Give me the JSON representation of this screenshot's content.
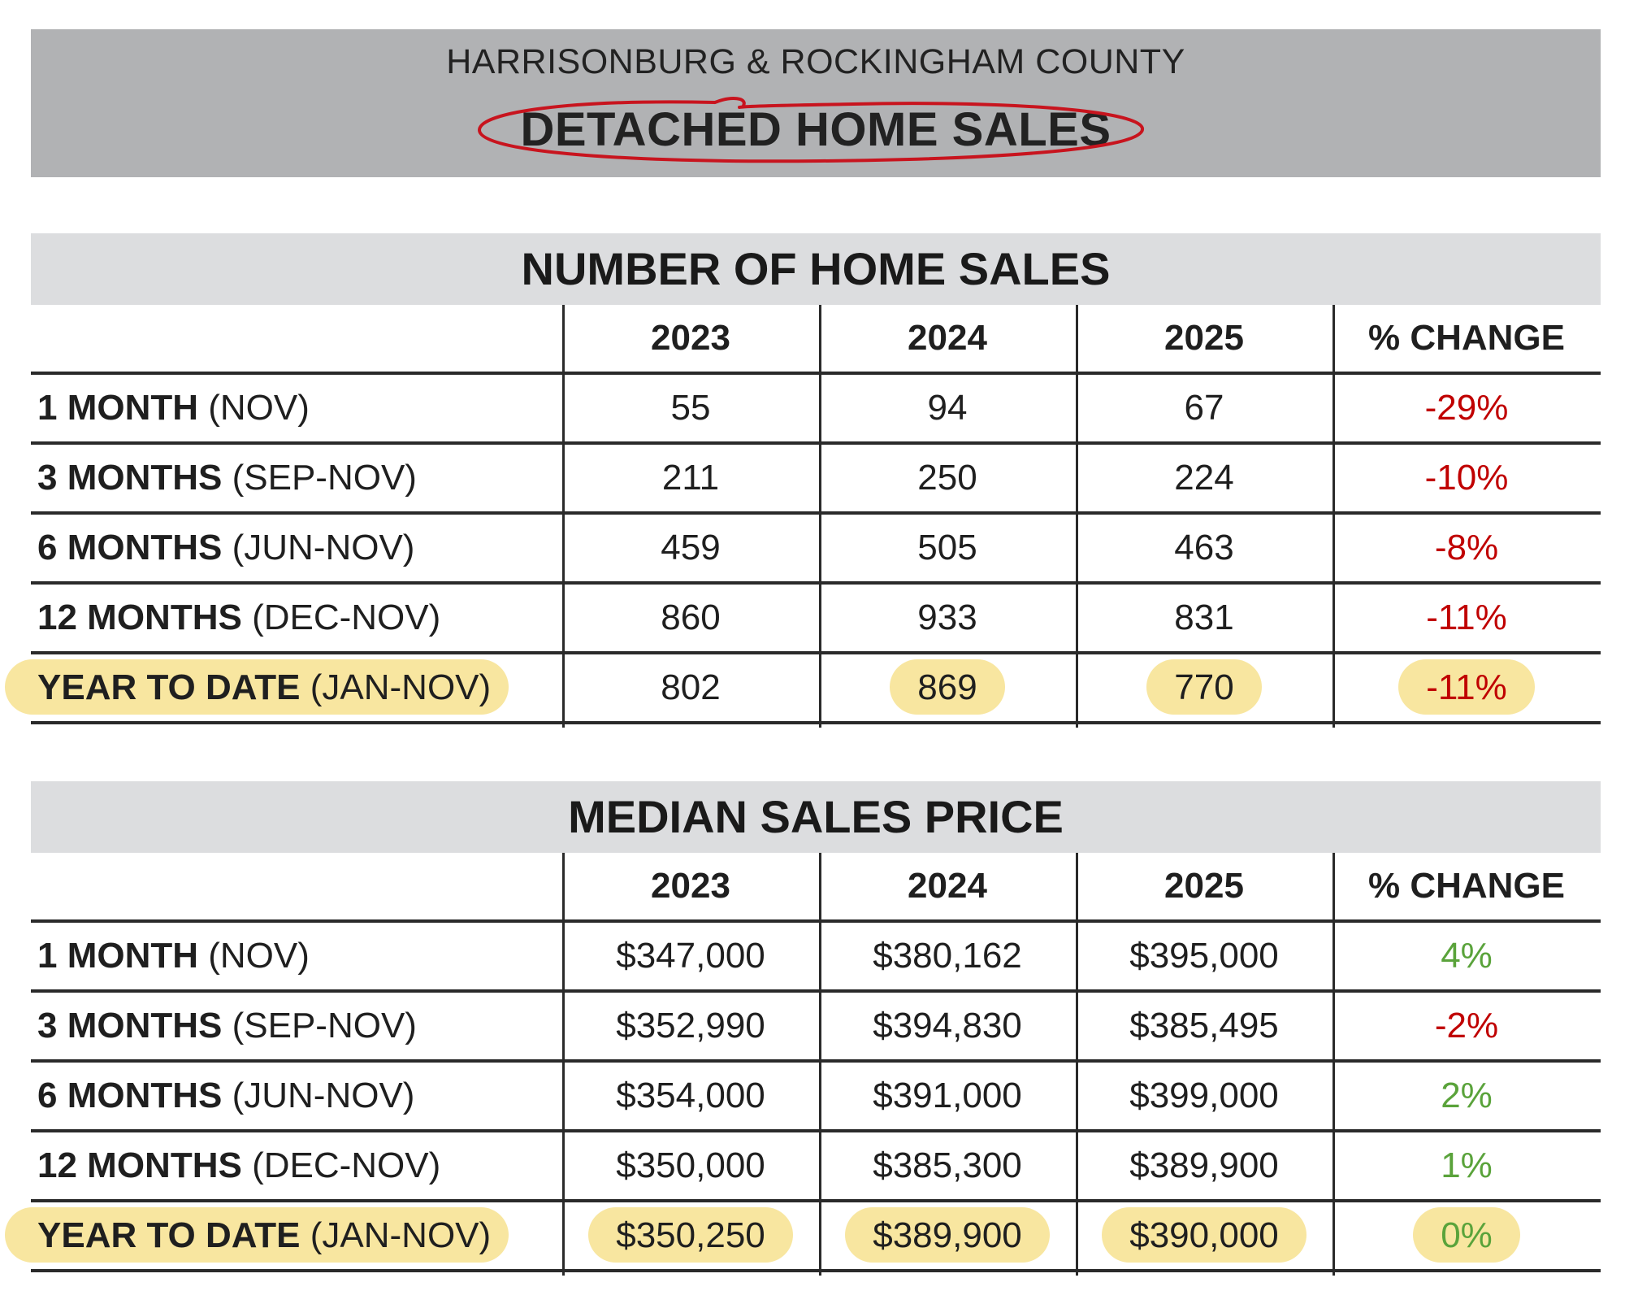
{
  "header": {
    "subtitle": "HARRISONBURG & ROCKINGHAM COUNTY",
    "title": "DETACHED HOME SALES"
  },
  "colors": {
    "header_bg": "#b1b2b4",
    "section_bg": "#dcdddf",
    "negative": "#c00000",
    "positive": "#5aa33b",
    "highlight": "#f8e6a0",
    "annotation": "#c8141e"
  },
  "sales": {
    "title": "NUMBER OF HOME SALES",
    "columns": [
      "2023",
      "2024",
      "2025",
      "% CHANGE"
    ],
    "rows": [
      {
        "label_bold": "1 MONTH",
        "label_rest": "(NOV)",
        "v1": "55",
        "v2": "94",
        "v3": "67",
        "change": "-29%"
      },
      {
        "label_bold": "3 MONTHS",
        "label_rest": "(SEP-NOV)",
        "v1": "211",
        "v2": "250",
        "v3": "224",
        "change": "-10%"
      },
      {
        "label_bold": "6 MONTHS",
        "label_rest": "(JUN-NOV)",
        "v1": "459",
        "v2": "505",
        "v3": "463",
        "change": "-8%"
      },
      {
        "label_bold": "12 MONTHS",
        "label_rest": "(DEC-NOV)",
        "v1": "860",
        "v2": "933",
        "v3": "831",
        "change": "-11%"
      },
      {
        "label_bold": "YEAR TO DATE",
        "label_rest": "(JAN-NOV)",
        "v1": "802",
        "v2": "869",
        "v3": "770",
        "change": "-11%"
      }
    ]
  },
  "price": {
    "title": "MEDIAN SALES PRICE",
    "columns": [
      "2023",
      "2024",
      "2025",
      "% CHANGE"
    ],
    "rows": [
      {
        "label_bold": "1 MONTH",
        "label_rest": "(NOV)",
        "v1": "$347,000",
        "v2": "$380,162",
        "v3": "$395,000",
        "change": "4%"
      },
      {
        "label_bold": "3 MONTHS",
        "label_rest": "(SEP-NOV)",
        "v1": "$352,990",
        "v2": "$394,830",
        "v3": "$385,495",
        "change": "-2%"
      },
      {
        "label_bold": "6 MONTHS",
        "label_rest": "(JUN-NOV)",
        "v1": "$354,000",
        "v2": "$391,000",
        "v3": "$399,000",
        "change": "2%"
      },
      {
        "label_bold": "12 MONTHS",
        "label_rest": "(DEC-NOV)",
        "v1": "$350,000",
        "v2": "$385,300",
        "v3": "$389,900",
        "change": "1%"
      },
      {
        "label_bold": "YEAR TO DATE",
        "label_rest": "(JAN-NOV)",
        "v1": "$350,250",
        "v2": "$389,900",
        "v3": "$390,000",
        "change": "0%"
      }
    ]
  }
}
